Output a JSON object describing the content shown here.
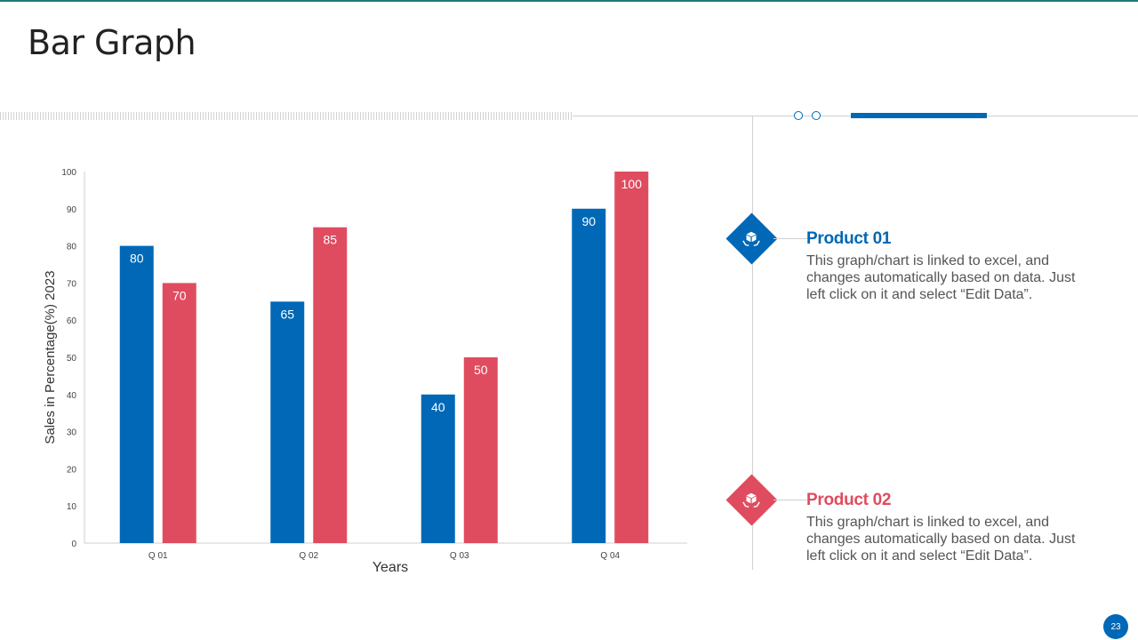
{
  "slide": {
    "title": "Bar Graph",
    "page_number": "23"
  },
  "colors": {
    "product1": "#0068b6",
    "product2": "#e04c5f",
    "accent": "#0068b6"
  },
  "products": [
    {
      "title": "Product 01",
      "description": "This graph/chart is linked to excel, and changes automatically based on data. Just left click on it and select “Edit Data”.",
      "icon": "package-hands-icon"
    },
    {
      "title": "Product 02",
      "description": "This graph/chart is linked to excel, and changes automatically based on data. Just left click on it and select “Edit Data”.",
      "icon": "package-hands-icon"
    }
  ],
  "chart_data": {
    "type": "bar",
    "title": "",
    "categories": [
      "Q 01",
      "Q 02",
      "Q 03",
      "Q 04"
    ],
    "series": [
      {
        "name": "Product 01",
        "values": [
          80,
          65,
          40,
          90
        ],
        "color": "#0068b6"
      },
      {
        "name": "Product 02",
        "values": [
          70,
          85,
          50,
          100
        ],
        "color": "#e04c5f"
      }
    ],
    "xlabel": "Years",
    "ylabel": "Sales in Percentage(%)  2023",
    "ylim": [
      0,
      100
    ],
    "yticks": [
      0,
      10,
      20,
      30,
      40,
      50,
      60,
      70,
      80,
      90,
      100
    ],
    "grid": false,
    "data_labels": true
  }
}
